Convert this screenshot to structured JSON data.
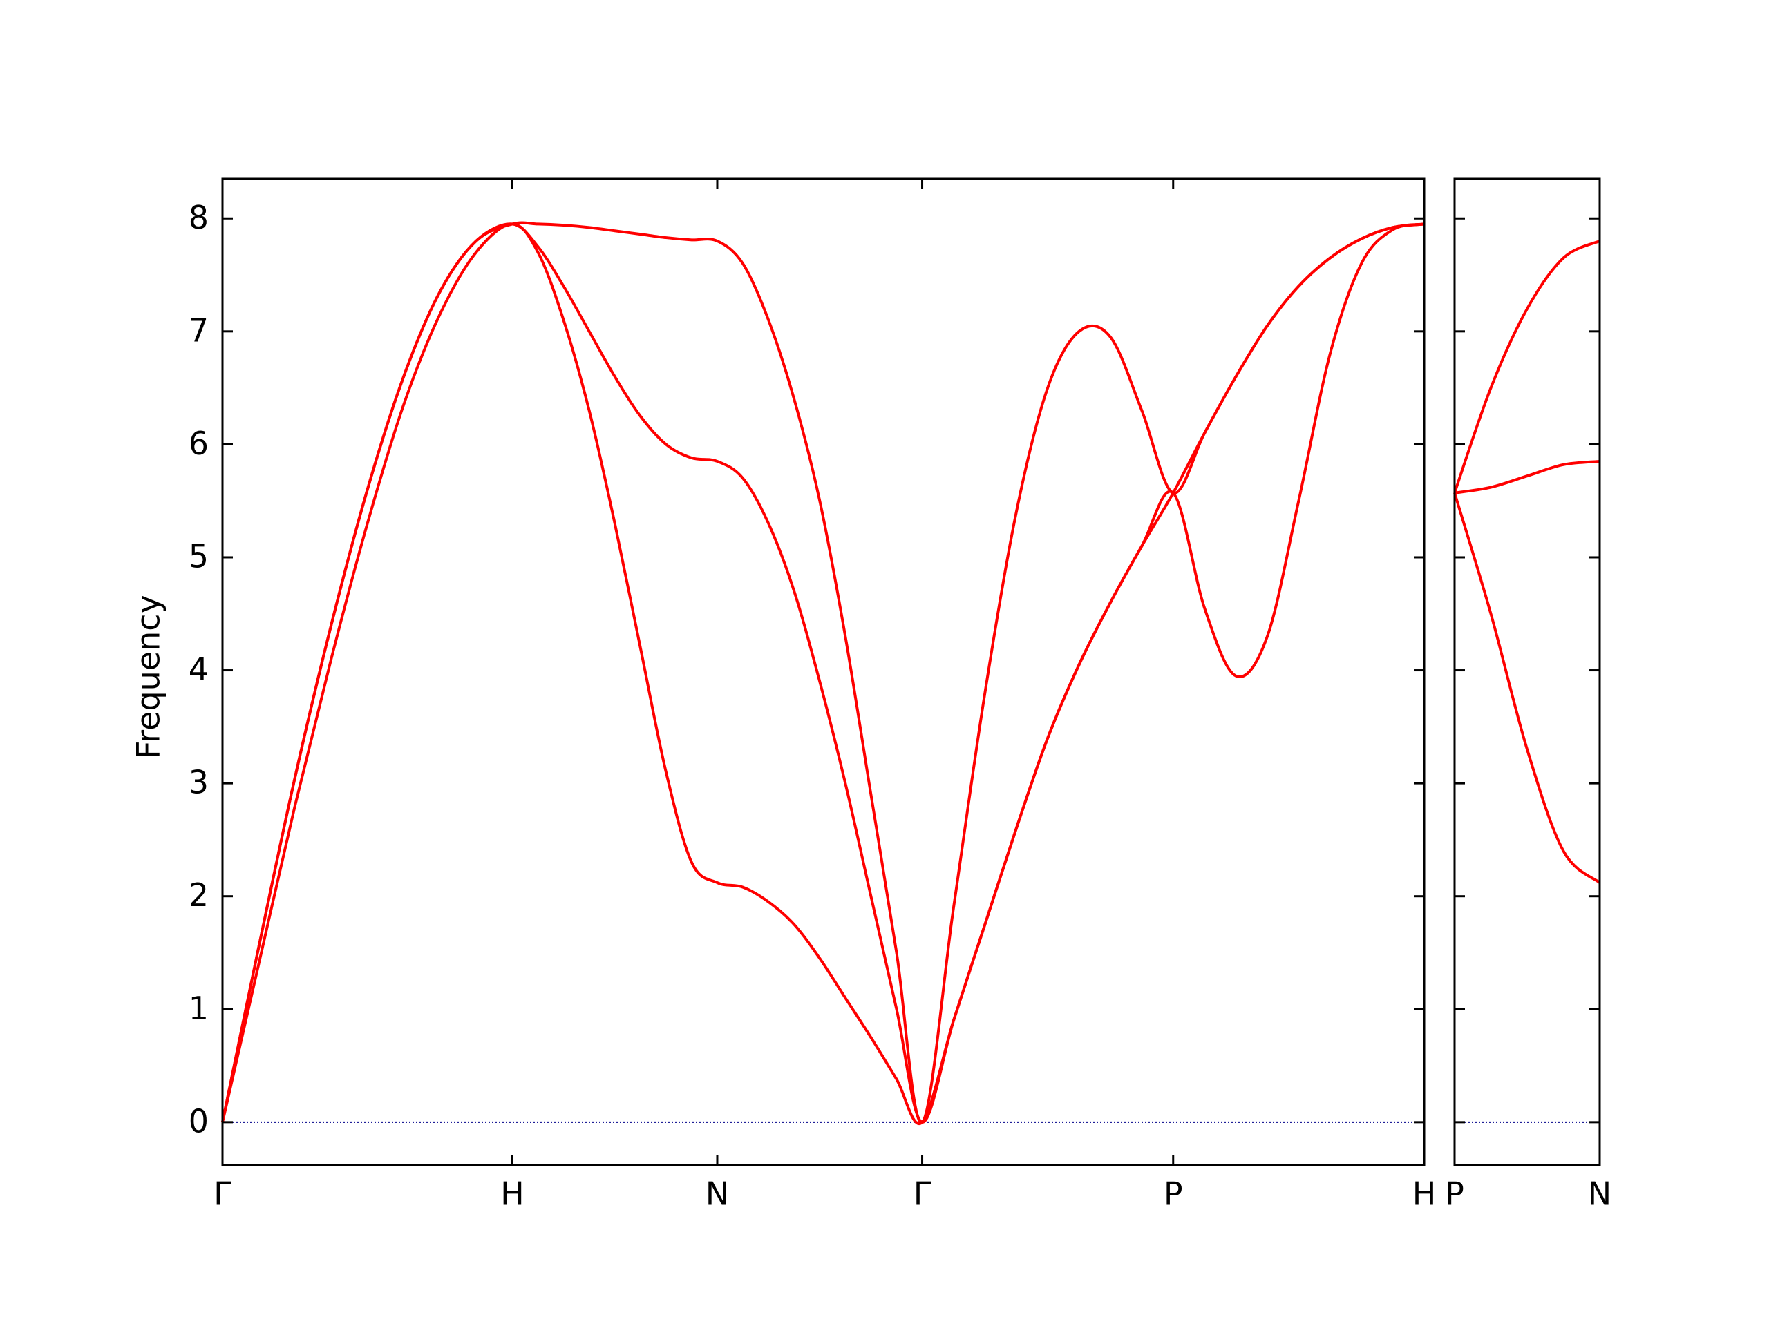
{
  "chart_data": [
    {
      "type": "line",
      "ylabel": "Frequency",
      "x": [
        0,
        0.125,
        0.25,
        0.375,
        0.5,
        0.625,
        0.75,
        0.875,
        1,
        1.0884,
        1.1768,
        1.2652,
        1.3536,
        1.4419,
        1.5303,
        1.6187,
        1.7071,
        1.7955,
        1.8839,
        1.9723,
        2.0607,
        2.149,
        2.2374,
        2.3258,
        2.4142,
        2.5225,
        2.6307,
        2.739,
        2.8472,
        2.9555,
        3.0637,
        3.172,
        3.2802,
        3.3885,
        3.4967,
        3.605,
        3.7132,
        3.8215,
        3.9297,
        4.038,
        4.1463
      ],
      "series": [
        {
          "color": "#ff0000",
          "values": [
            0,
            1.4,
            2.8,
            4.1,
            5.3,
            6.35,
            7.15,
            7.7,
            7.95,
            7.7,
            7.1,
            6.3,
            5.3,
            4.2,
            3.1,
            2.3,
            2.12,
            2.08,
            1.95,
            1.75,
            1.45,
            1.1,
            0.75,
            0.38,
            0,
            0.9,
            1.75,
            2.6,
            3.4,
            4.05,
            4.6,
            5.1,
            5.57,
            4.55,
            3.95,
            4.3,
            5.5,
            6.8,
            7.6,
            7.9,
            7.95
          ]
        },
        {
          "color": "#ff0000",
          "values": [
            0,
            1.55,
            3.05,
            4.4,
            5.6,
            6.6,
            7.35,
            7.8,
            7.95,
            7.75,
            7.4,
            7.0,
            6.6,
            6.25,
            6.0,
            5.88,
            5.85,
            5.7,
            5.3,
            4.7,
            3.9,
            3.0,
            2.0,
            1.0,
            0,
            0.9,
            1.75,
            2.6,
            3.4,
            4.05,
            4.6,
            5.1,
            5.57,
            6.1,
            6.6,
            7.05,
            7.4,
            7.65,
            7.82,
            7.92,
            7.95
          ]
        },
        {
          "color": "#ff0000",
          "values": [
            0,
            1.55,
            3.05,
            4.4,
            5.6,
            6.6,
            7.35,
            7.8,
            7.95,
            7.95,
            7.94,
            7.92,
            7.89,
            7.86,
            7.83,
            7.81,
            7.8,
            7.6,
            7.1,
            6.4,
            5.5,
            4.3,
            2.9,
            1.5,
            0,
            1.9,
            3.8,
            5.4,
            6.5,
            7.0,
            6.95,
            6.3,
            5.57,
            6.1,
            6.6,
            7.05,
            7.4,
            7.65,
            7.82,
            7.92,
            7.95
          ]
        }
      ],
      "xlim": [
        0,
        4.1463
      ],
      "ylim": [
        -0.38,
        8.35
      ],
      "xticks": [
        {
          "value": 0,
          "label": "Γ"
        },
        {
          "value": 1,
          "label": "H"
        },
        {
          "value": 1.7071,
          "label": "N"
        },
        {
          "value": 2.4142,
          "label": "Γ"
        },
        {
          "value": 3.2802,
          "label": "P"
        },
        {
          "value": 4.1463,
          "label": "H"
        }
      ],
      "yticks": [
        0,
        1,
        2,
        3,
        4,
        5,
        6,
        7,
        8
      ],
      "ytick_labels": true,
      "zero_line": {
        "value": 0,
        "color": "#00008b"
      }
    },
    {
      "type": "line",
      "x": [
        0,
        0.125,
        0.25,
        0.375,
        0.5
      ],
      "series": [
        {
          "color": "#ff0000",
          "values": [
            5.57,
            4.5,
            3.3,
            2.4,
            2.12
          ]
        },
        {
          "color": "#ff0000",
          "values": [
            5.57,
            5.62,
            5.72,
            5.82,
            5.85
          ]
        },
        {
          "color": "#ff0000",
          "values": [
            5.57,
            6.5,
            7.2,
            7.65,
            7.8
          ]
        }
      ],
      "xlim": [
        0,
        0.5
      ],
      "ylim": [
        -0.38,
        8.35
      ],
      "xticks": [
        {
          "value": 0,
          "label": "P"
        },
        {
          "value": 0.5,
          "label": "N"
        }
      ],
      "yticks": [
        0,
        1,
        2,
        3,
        4,
        5,
        6,
        7,
        8
      ],
      "ytick_labels": false,
      "zero_line": {
        "value": 0,
        "color": "#00008b"
      }
    }
  ]
}
